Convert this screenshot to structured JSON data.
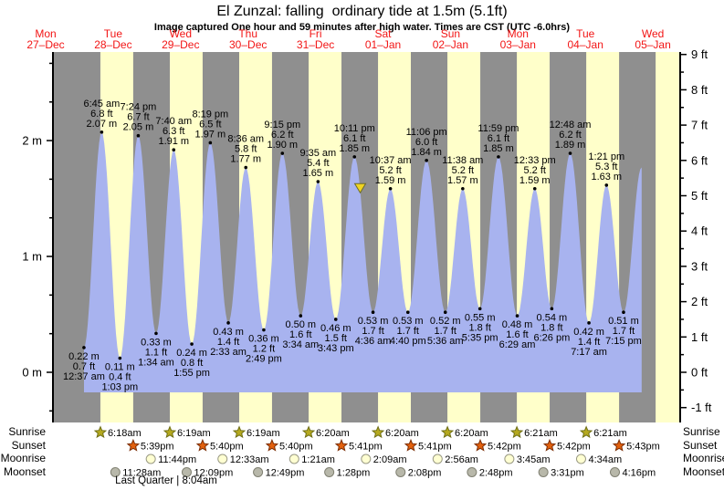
{
  "title": "El Zunzal: falling  ordinary tide at 1.5m (5.1ft)",
  "subtitle": "Image captured One hour and 59 minutes after high water. Times are CST (UTC -6.0hrs)",
  "days": [
    {
      "name": "Mon",
      "date": "27–Dec"
    },
    {
      "name": "Tue",
      "date": "28–Dec"
    },
    {
      "name": "Wed",
      "date": "29–Dec"
    },
    {
      "name": "Thu",
      "date": "30–Dec"
    },
    {
      "name": "Fri",
      "date": "31–Dec"
    },
    {
      "name": "Sat",
      "date": "01–Jan"
    },
    {
      "name": "Sun",
      "date": "02–Jan"
    },
    {
      "name": "Mon",
      "date": "03–Jan"
    },
    {
      "name": "Tue",
      "date": "04–Jan"
    },
    {
      "name": "Wed",
      "date": "05–Jan"
    }
  ],
  "chart_data": {
    "type": "area",
    "title": "El Zunzal: falling ordinary tide at 1.5m (5.1ft)",
    "ylabel_left": "meters",
    "ylabel_right": "feet",
    "ylim_ft": [
      -1.4,
      9.1
    ],
    "grid": false,
    "events": [
      {
        "kind": "low",
        "day": 0,
        "time": "12:37 am",
        "m": 0.22,
        "ft": 0.7
      },
      {
        "kind": "high",
        "day": 0,
        "time": "6:45 am",
        "m": 2.07,
        "ft": 6.8
      },
      {
        "kind": "low",
        "day": 0,
        "time": "1:03 pm",
        "m": 0.11,
        "ft": 0.4
      },
      {
        "kind": "high",
        "day": 0,
        "time": "7:24 pm",
        "m": 2.05,
        "ft": 6.7
      },
      {
        "kind": "low",
        "day": 1,
        "time": "1:34 am",
        "m": 0.33,
        "ft": 1.1
      },
      {
        "kind": "high",
        "day": 1,
        "time": "7:40 am",
        "m": 1.91,
        "ft": 6.3
      },
      {
        "kind": "low",
        "day": 1,
        "time": "1:55 pm",
        "m": 0.24,
        "ft": 0.8
      },
      {
        "kind": "high",
        "day": 1,
        "time": "8:19 pm",
        "m": 1.97,
        "ft": 6.5
      },
      {
        "kind": "low",
        "day": 2,
        "time": "2:33 am",
        "m": 0.43,
        "ft": 1.4
      },
      {
        "kind": "high",
        "day": 2,
        "time": "8:36 am",
        "m": 1.77,
        "ft": 5.8
      },
      {
        "kind": "low",
        "day": 2,
        "time": "2:49 pm",
        "m": 0.36,
        "ft": 1.2
      },
      {
        "kind": "high",
        "day": 2,
        "time": "9:15 pm",
        "m": 1.9,
        "ft": 6.2
      },
      {
        "kind": "low",
        "day": 3,
        "time": "3:34 am",
        "m": 0.5,
        "ft": 1.6
      },
      {
        "kind": "high",
        "day": 3,
        "time": "9:35 am",
        "m": 1.65,
        "ft": 5.4
      },
      {
        "kind": "low",
        "day": 3,
        "time": "3:43 pm",
        "m": 0.46,
        "ft": 1.5
      },
      {
        "kind": "high",
        "day": 3,
        "time": "10:11 pm",
        "m": 1.85,
        "ft": 6.1
      },
      {
        "kind": "low",
        "day": 4,
        "time": "4:36 am",
        "m": 0.53,
        "ft": 1.7
      },
      {
        "kind": "high",
        "day": 4,
        "time": "10:37 am",
        "m": 1.59,
        "ft": 5.2
      },
      {
        "kind": "low",
        "day": 4,
        "time": "4:40 pm",
        "m": 0.53,
        "ft": 1.7
      },
      {
        "kind": "high",
        "day": 4,
        "time": "11:06 pm",
        "m": 1.84,
        "ft": 6.0
      },
      {
        "kind": "low",
        "day": 5,
        "time": "5:36 am",
        "m": 0.52,
        "ft": 1.7
      },
      {
        "kind": "high",
        "day": 5,
        "time": "11:38 am",
        "m": 1.57,
        "ft": 5.2
      },
      {
        "kind": "low",
        "day": 5,
        "time": "5:35 pm",
        "m": 0.55,
        "ft": 1.8
      },
      {
        "kind": "high",
        "day": 5,
        "time": "11:59 pm",
        "m": 1.85,
        "ft": 6.1
      },
      {
        "kind": "low",
        "day": 6,
        "time": "6:29 am",
        "m": 0.48,
        "ft": 1.6
      },
      {
        "kind": "high",
        "day": 6,
        "time": "12:33 pm",
        "m": 1.59,
        "ft": 5.2
      },
      {
        "kind": "low",
        "day": 6,
        "time": "6:26 pm",
        "m": 0.54,
        "ft": 1.8
      },
      {
        "kind": "high",
        "day": 7,
        "time": "12:48 am",
        "m": 1.89,
        "ft": 6.2
      },
      {
        "kind": "low",
        "day": 7,
        "time": "7:17 am",
        "m": 0.42,
        "ft": 1.4
      },
      {
        "kind": "high",
        "day": 7,
        "time": "1:21 pm",
        "m": 1.63,
        "ft": 5.3
      },
      {
        "kind": "low",
        "day": 7,
        "time": "7:15 pm",
        "m": 0.51,
        "ft": 1.7
      },
      {
        "kind": "end",
        "day": 8,
        "time": "1:30 am",
        "m": 1.77,
        "ft": 5.8
      }
    ],
    "capture_marker": {
      "day": 4,
      "time": "12:10 am",
      "m": 1.5,
      "ft": 5.1
    },
    "y_axis": {
      "left": [
        {
          "label": "2 m",
          "m": 2
        },
        {
          "label": "1 m",
          "m": 1
        },
        {
          "label": "0 m",
          "m": 0
        }
      ],
      "right": [
        {
          "label": "9 ft",
          "ft": 9
        },
        {
          "label": "8 ft",
          "ft": 8
        },
        {
          "label": "7 ft",
          "ft": 7
        },
        {
          "label": "6 ft",
          "ft": 6
        },
        {
          "label": "5 ft",
          "ft": 5
        },
        {
          "label": "4 ft",
          "ft": 4
        },
        {
          "label": "3 ft",
          "ft": 3
        },
        {
          "label": "2 ft",
          "ft": 2
        },
        {
          "label": "1 ft",
          "ft": 1
        },
        {
          "label": "0 ft",
          "ft": 0
        },
        {
          "label": "-1 ft",
          "ft": -1
        }
      ]
    }
  },
  "almanac": {
    "row_labels": [
      "Sunrise",
      "Sunset",
      "Moonrise",
      "Moonset"
    ],
    "sunrise": [
      {
        "day": 0,
        "time": "6:18am"
      },
      {
        "day": 1,
        "time": "6:19am"
      },
      {
        "day": 2,
        "time": "6:19am"
      },
      {
        "day": 3,
        "time": "6:20am"
      },
      {
        "day": 4,
        "time": "6:20am"
      },
      {
        "day": 5,
        "time": "6:20am"
      },
      {
        "day": 6,
        "time": "6:21am"
      },
      {
        "day": 7,
        "time": "6:21am"
      }
    ],
    "sunset": [
      {
        "day": 0,
        "time": "5:39pm"
      },
      {
        "day": 1,
        "time": "5:40pm"
      },
      {
        "day": 2,
        "time": "5:40pm"
      },
      {
        "day": 3,
        "time": "5:41pm"
      },
      {
        "day": 4,
        "time": "5:41pm"
      },
      {
        "day": 5,
        "time": "5:42pm"
      },
      {
        "day": 6,
        "time": "5:42pm"
      },
      {
        "day": 7,
        "time": "5:43pm"
      }
    ],
    "moonrise": [
      {
        "day": 0,
        "time": "11:44pm"
      },
      {
        "day": 2,
        "time": "12:33am"
      },
      {
        "day": 3,
        "time": "1:21am"
      },
      {
        "day": 4,
        "time": "2:09am"
      },
      {
        "day": 5,
        "time": "2:56am"
      },
      {
        "day": 6,
        "time": "3:45am"
      },
      {
        "day": 7,
        "time": "4:34am"
      }
    ],
    "moonset": [
      {
        "day": 0,
        "time": "11:28am"
      },
      {
        "day": 1,
        "time": "12:09pm"
      },
      {
        "day": 2,
        "time": "12:49pm"
      },
      {
        "day": 3,
        "time": "1:28pm"
      },
      {
        "day": 4,
        "time": "2:08pm"
      },
      {
        "day": 5,
        "time": "2:48pm"
      },
      {
        "day": 6,
        "time": "3:31pm"
      },
      {
        "day": 7,
        "time": "4:16pm"
      }
    ],
    "extra_daylight_start": {
      "day": 8,
      "time": "6:21am"
    },
    "footer": "Last Quarter | 8:04am"
  },
  "colors": {
    "night_band": "#8f8f8f",
    "day_band": "#ffffca",
    "tide_fill": "#a8b3ef",
    "date_label": "#f21515",
    "annotation": "#000000",
    "sunrise_star": "#b5a91f",
    "sunrise_star_stroke": "#6e6e15",
    "sunset_star": "#e2600d",
    "sunset_star_stroke": "#7a2d05",
    "moonrise_circle": "#ffffd2",
    "moonrise_circle_stroke": "#9a9a85",
    "moonset_circle": "#b8b8aa",
    "moonset_circle_stroke": "#808072",
    "marker_fill": "#f0d422",
    "marker_stroke": "#6b6b2a",
    "axis": "#000000"
  }
}
